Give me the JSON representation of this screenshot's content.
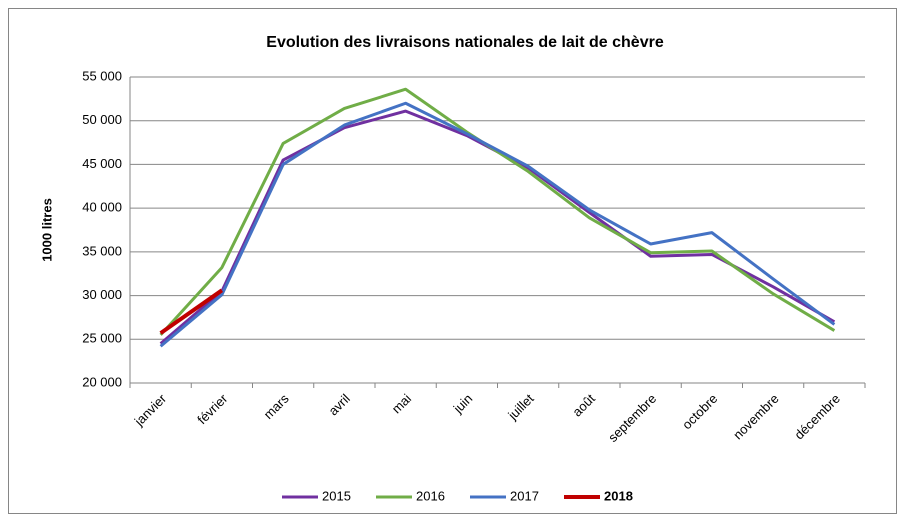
{
  "chart_data": {
    "type": "line",
    "title": "Evolution des livraisons nationales de lait de chèvre",
    "ylabel": "1000 litres",
    "categories": [
      "janvier",
      "février",
      "mars",
      "avril",
      "mai",
      "juin",
      "juillet",
      "août",
      "septembre",
      "octobre",
      "novembre",
      "décembre"
    ],
    "series": [
      {
        "name": "2015",
        "color": "#7030a0",
        "values": [
          24500,
          30500,
          45500,
          49200,
          51100,
          48300,
          44600,
          39500,
          34500,
          34700,
          31000,
          27000
        ]
      },
      {
        "name": "2016",
        "color": "#70ad47",
        "values": [
          25500,
          33200,
          47400,
          51400,
          53600,
          48700,
          44200,
          38900,
          34900,
          35100,
          30200,
          26000
        ]
      },
      {
        "name": "2017",
        "color": "#4472c4",
        "values": [
          24200,
          30100,
          45000,
          49500,
          52000,
          48500,
          44800,
          39800,
          35900,
          37200,
          31900,
          26700
        ]
      },
      {
        "name": "2018",
        "color": "#c00000",
        "values": [
          25700,
          30600,
          null,
          null,
          null,
          null,
          null,
          null,
          null,
          null,
          null,
          null
        ]
      }
    ],
    "ylim": [
      20000,
      55000
    ],
    "yticks": [
      {
        "value": 20000,
        "label": "20 000"
      },
      {
        "value": 25000,
        "label": "25 000"
      },
      {
        "value": 30000,
        "label": "30 000"
      },
      {
        "value": 35000,
        "label": "35 000"
      },
      {
        "value": 40000,
        "label": "40 000"
      },
      {
        "value": 45000,
        "label": "45 000"
      },
      {
        "value": 50000,
        "label": "50 000"
      },
      {
        "value": 55000,
        "label": "55 000"
      }
    ],
    "grid": true,
    "legend": "bottom"
  }
}
